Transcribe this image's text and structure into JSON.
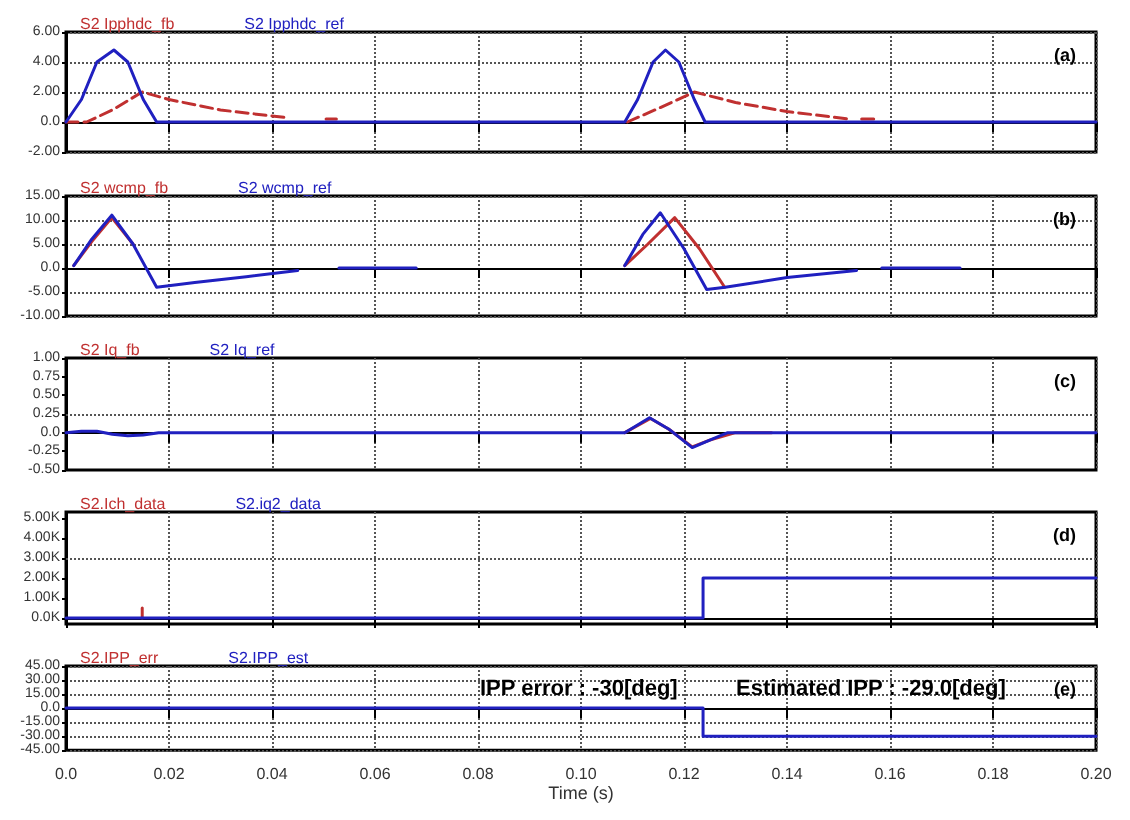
{
  "chart_data": [
    {
      "type": "line",
      "title": "(a)",
      "legend": "top left",
      "grid": true,
      "marker": "none",
      "tick_labels": "y",
      "xlim": [
        0,
        0.2
      ],
      "xticks": [
        0,
        0.02,
        0.04,
        0.06,
        0.08,
        0.1,
        0.12,
        0.14,
        0.16,
        0.18,
        0.2
      ],
      "ylim": [
        -2,
        6
      ],
      "yticks": [
        {
          "value": -2,
          "label": "-2.00"
        },
        {
          "value": 0,
          "label": "0.0"
        },
        {
          "value": 2,
          "label": "2.00"
        },
        {
          "value": 4,
          "label": "4.00"
        },
        {
          "value": 6,
          "label": "6.00"
        }
      ],
      "series": [
        {
          "name": "S2 Ipphdc_fb",
          "color": "#c03030",
          "line_style": "dashed",
          "x": [
            0,
            0.004,
            0.009,
            0.0148,
            0.02,
            0.03,
            0.0426,
            0.046,
            0.0505,
            0.0525,
            0.055,
            0.109,
            0.115,
            0.122,
            0.13,
            0.14,
            0.152,
            0.1535,
            0.1545,
            0.157
          ],
          "values": [
            0,
            0,
            0.8,
            2,
            1.5,
            0.8,
            0.3,
            null,
            0.2,
            0.2,
            null,
            0,
            0.9,
            2,
            1.3,
            0.7,
            0.2,
            null,
            0.2,
            0.2
          ]
        },
        {
          "name": "S2 Ipphdc_ref",
          "color": "#2020c0",
          "x": [
            0,
            0.003,
            0.006,
            0.0093,
            0.012,
            0.015,
            0.0176,
            0.1085,
            0.111,
            0.114,
            0.1164,
            0.119,
            0.122,
            0.1241,
            0.2
          ],
          "values": [
            0,
            1.5,
            4,
            4.8,
            4,
            1.5,
            0,
            0,
            1.5,
            4,
            4.8,
            4,
            1.5,
            0,
            0
          ]
        }
      ]
    },
    {
      "type": "line",
      "title": "(b)",
      "legend": "top left",
      "grid": true,
      "marker": "none",
      "tick_labels": "y",
      "xlim": [
        0,
        0.2
      ],
      "xticks": [
        0,
        0.02,
        0.04,
        0.06,
        0.08,
        0.1,
        0.12,
        0.14,
        0.16,
        0.18,
        0.2
      ],
      "ylim": [
        -10,
        15
      ],
      "yticks": [
        {
          "value": -10,
          "label": "-10.00"
        },
        {
          "value": -5,
          "label": "-5.00"
        },
        {
          "value": 0,
          "label": "0.0"
        },
        {
          "value": 5,
          "label": "5.00"
        },
        {
          "value": 10,
          "label": "10.00"
        },
        {
          "value": 15,
          "label": "15.00"
        }
      ],
      "series": [
        {
          "name": "S2 wcmp_fb",
          "color": "#c03030",
          "x": [
            0.0015,
            0.005,
            0.0089,
            0.013,
            0.0176,
            0.025,
            0.035,
            0.045,
            0.049,
            0.053,
            0.068,
            0.1,
            0.1085,
            0.113,
            0.1182,
            0.123,
            0.1279
          ],
          "values": [
            0.5,
            5.5,
            10.5,
            5,
            null,
            null,
            null,
            null,
            null,
            null,
            null,
            null,
            0.5,
            5,
            10.5,
            4,
            -4
          ]
        },
        {
          "name": "S2 wcmp_ref",
          "color": "#2020c0",
          "x": [
            0.0015,
            0.005,
            0.0089,
            0.013,
            0.0176,
            0.025,
            0.035,
            0.045,
            0.049,
            0.053,
            0.068,
            0.1,
            0.1085,
            0.112,
            0.1154,
            0.12,
            0.1244,
            0.128,
            0.14,
            0.1535,
            0.156,
            0.1584,
            0.1736
          ],
          "values": [
            0.5,
            6,
            11,
            5,
            -4,
            -3,
            -1.8,
            -0.5,
            null,
            0,
            0,
            null,
            0.5,
            7,
            11.5,
            4,
            -4.5,
            -4,
            -2,
            -0.5,
            null,
            0,
            0
          ]
        }
      ]
    },
    {
      "type": "line",
      "title": "(c)",
      "legend": "top left",
      "grid": "x",
      "marker": "none",
      "tick_labels": "y",
      "xlim": [
        0,
        0.2
      ],
      "xticks": [
        0,
        0.02,
        0.04,
        0.06,
        0.08,
        0.1,
        0.12,
        0.14,
        0.16,
        0.18,
        0.2
      ],
      "ylim": [
        -0.5,
        1
      ],
      "yticks": [
        {
          "value": -0.5,
          "label": "-0.50"
        },
        {
          "value": -0.25,
          "label": "-0.25"
        },
        {
          "value": 0,
          "label": "0.0"
        },
        {
          "value": 0.25,
          "label": "0.25"
        },
        {
          "value": 0.5,
          "label": "0.50"
        },
        {
          "value": 0.75,
          "label": "0.75"
        },
        {
          "value": 1,
          "label": "1.00"
        }
      ],
      "ref_lines": [
        {
          "axis": "y",
          "value": 0.25
        }
      ],
      "series": [
        {
          "name": "S2 Iq_fb",
          "color": "#c03030",
          "x": [
            0.1085,
            0.1135,
            0.117,
            0.1216,
            0.125,
            0.13,
            0.137
          ],
          "values": [
            0,
            0.19,
            0.05,
            -0.19,
            -0.1,
            0,
            0
          ]
        },
        {
          "name": "S2 Iq_ref",
          "color": "#2020c0",
          "x": [
            0,
            0.003,
            0.006,
            0.009,
            0.012,
            0.015,
            0.018,
            0.02,
            0.1085,
            0.1133,
            0.117,
            0.1216,
            0.125,
            0.1285,
            0.2
          ],
          "values": [
            0,
            0.02,
            0.02,
            -0.02,
            -0.04,
            -0.03,
            0,
            0,
            0,
            0.2,
            0.05,
            -0.2,
            -0.1,
            0,
            0
          ]
        }
      ]
    },
    {
      "type": "step",
      "title": "(d)",
      "legend": "top left",
      "grid": "x",
      "marker": "none",
      "tick_labels": "y",
      "xlim": [
        0,
        0.2
      ],
      "xticks": [
        0,
        0.02,
        0.04,
        0.06,
        0.08,
        0.1,
        0.12,
        0.14,
        0.16,
        0.18,
        0.2
      ],
      "ylim": [
        -300,
        5300
      ],
      "yticks": [
        {
          "value": 0,
          "label": "0.0K"
        },
        {
          "value": 1000,
          "label": "1.00K"
        },
        {
          "value": 2000,
          "label": "2.00K"
        },
        {
          "value": 3000,
          "label": "3.00K"
        },
        {
          "value": 4000,
          "label": "4.00K"
        },
        {
          "value": 5000,
          "label": "5.00K"
        }
      ],
      "ref_lines": [
        {
          "axis": "y",
          "value": 3000
        }
      ],
      "series": [
        {
          "name": "S2.Ich_data",
          "color": "#c03030",
          "type": "line",
          "x": [
            0.0148,
            0.0148
          ],
          "values": [
            0,
            500
          ]
        },
        {
          "name": "S2.iq2_data",
          "color": "#2020c0",
          "x": [
            0,
            0.1237,
            0.2
          ],
          "values": [
            0,
            2000,
            2000
          ]
        }
      ]
    },
    {
      "type": "step",
      "title": "(e)",
      "legend": "top left",
      "grid": true,
      "marker": "none",
      "xlabel": "Time (s)",
      "xlim": [
        0,
        0.2
      ],
      "xticks": [
        {
          "value": 0,
          "label": "0.0"
        },
        0.02,
        0.04,
        0.06,
        0.08,
        {
          "value": 0.1,
          "label": "0.10"
        },
        0.12,
        0.14,
        0.16,
        0.18,
        {
          "value": 0.2,
          "label": "0.20"
        }
      ],
      "ylim": [
        -45,
        45
      ],
      "yticks": [
        {
          "value": -45,
          "label": "-45.00"
        },
        {
          "value": -30,
          "label": "-30.00"
        },
        {
          "value": -15,
          "label": "-15.00"
        },
        {
          "value": 0,
          "label": "0.0"
        },
        {
          "value": 15,
          "label": "15.00"
        },
        {
          "value": 30,
          "label": "30.00"
        },
        {
          "value": 45,
          "label": "45.00"
        }
      ],
      "annotations": [
        "IPP error : -30[deg]",
        "Estimated IPP : -29.0[deg]"
      ],
      "series": [
        {
          "name": "S2.IPP_err",
          "color": "#c03030"
        },
        {
          "name": "S2.IPP_est",
          "color": "#2020c0",
          "x": [
            0,
            0.1237,
            0.2
          ],
          "values": [
            0,
            -30,
            -30
          ]
        }
      ]
    }
  ]
}
